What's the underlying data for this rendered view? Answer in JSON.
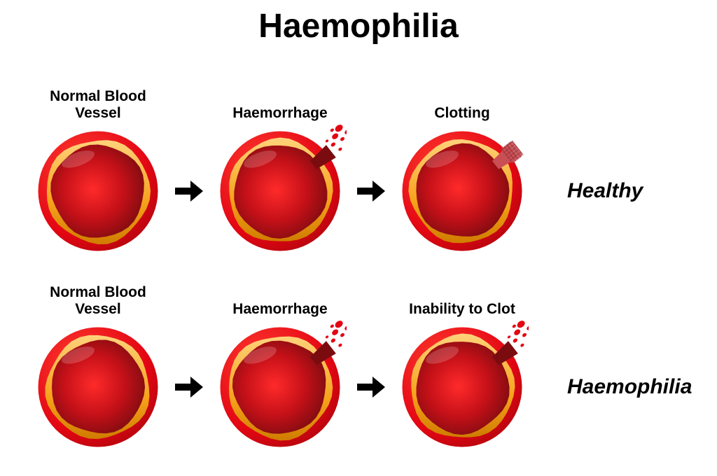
{
  "title": "Haemophilia",
  "colors": {
    "outer_red": "#e30613",
    "outer_red_dark": "#b0050d",
    "wall_orange": "#f6a21b",
    "wall_orange_dark": "#d07c00",
    "lumen_center": "#ff2a2a",
    "lumen_edge": "#7a0c10",
    "arrow": "#000000",
    "patch": "#c94f55"
  },
  "rows": [
    {
      "side_label": "Healthy",
      "cells": [
        {
          "label": "Normal Blood\nVessel",
          "state": "normal"
        },
        {
          "label": "Haemorrhage",
          "state": "haemorrhage"
        },
        {
          "label": "Clotting",
          "state": "clotted"
        }
      ]
    },
    {
      "side_label": "Haemophilia",
      "cells": [
        {
          "label": "Normal Blood\nVessel",
          "state": "normal"
        },
        {
          "label": "Haemorrhage",
          "state": "haemorrhage"
        },
        {
          "label": "Inability to Clot",
          "state": "haemorrhage"
        }
      ]
    }
  ],
  "geometry": {
    "svg_view": 200,
    "outer_r": 90,
    "wall_r": 78,
    "lumen_r": 70,
    "wall_wobble": 3,
    "break_angle_deg": 38,
    "break_width_deg": 14
  }
}
